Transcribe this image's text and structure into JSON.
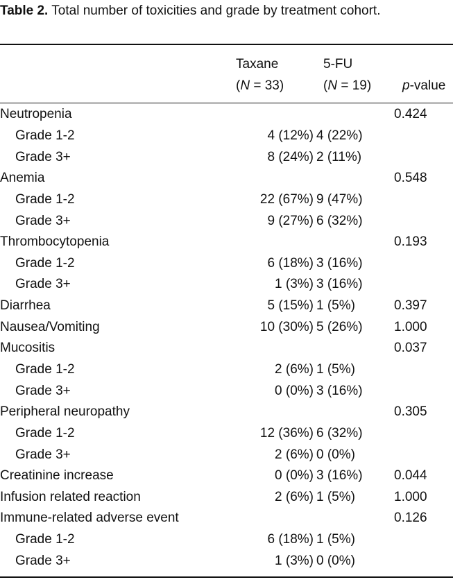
{
  "caption": {
    "label": "Table 2.",
    "text": "Total number of toxicities and grade by treatment cohort."
  },
  "columns": {
    "taxane": {
      "name": "Taxane",
      "n_open": "(",
      "n_var": "N",
      "n_rest": " = 33)"
    },
    "fu": {
      "name": "5-FU",
      "n_open": "(",
      "n_var": "N",
      "n_rest": " = 19)"
    },
    "pvalue": {
      "p": "p",
      "rest": "-value"
    }
  },
  "rows": [
    {
      "label": "Neutropenia",
      "sub": false,
      "taxane": "",
      "fu": "",
      "p": "0.424"
    },
    {
      "label": "Grade 1-2",
      "sub": true,
      "taxane": "4 (12%)",
      "fu": "4 (22%)",
      "p": ""
    },
    {
      "label": "Grade 3+",
      "sub": true,
      "taxane": "8 (24%)",
      "fu": "2 (11%)",
      "p": ""
    },
    {
      "label": "Anemia",
      "sub": false,
      "taxane": "",
      "fu": "",
      "p": "0.548"
    },
    {
      "label": "Grade 1-2",
      "sub": true,
      "taxane": "22 (67%)",
      "fu": "9 (47%)",
      "p": ""
    },
    {
      "label": "Grade 3+",
      "sub": true,
      "taxane": "9 (27%)",
      "fu": "6 (32%)",
      "p": ""
    },
    {
      "label": "Thrombocytopenia",
      "sub": false,
      "taxane": "",
      "fu": "",
      "p": "0.193"
    },
    {
      "label": "Grade 1-2",
      "sub": true,
      "taxane": "6 (18%)",
      "fu": "3 (16%)",
      "p": ""
    },
    {
      "label": "Grade 3+",
      "sub": true,
      "taxane": "1 (3%)",
      "fu": "3 (16%)",
      "p": ""
    },
    {
      "label": "Diarrhea",
      "sub": false,
      "taxane": "5 (15%)",
      "fu": "1 (5%)",
      "p": "0.397"
    },
    {
      "label": "Nausea/Vomiting",
      "sub": false,
      "taxane": "10 (30%)",
      "fu": "5 (26%)",
      "p": "1.000"
    },
    {
      "label": "Mucositis",
      "sub": false,
      "taxane": "",
      "fu": "",
      "p": "0.037"
    },
    {
      "label": "Grade 1-2",
      "sub": true,
      "taxane": "2 (6%)",
      "fu": "1 (5%)",
      "p": ""
    },
    {
      "label": "Grade 3+",
      "sub": true,
      "taxane": "0 (0%)",
      "fu": "3 (16%)",
      "p": ""
    },
    {
      "label": "Peripheral neuropathy",
      "sub": false,
      "taxane": "",
      "fu": "",
      "p": "0.305"
    },
    {
      "label": "Grade 1-2",
      "sub": true,
      "taxane": "12 (36%)",
      "fu": "6 (32%)",
      "p": ""
    },
    {
      "label": "Grade 3+",
      "sub": true,
      "taxane": "2 (6%)",
      "fu": "0 (0%)",
      "p": ""
    },
    {
      "label": "Creatinine increase",
      "sub": false,
      "taxane": "0 (0%)",
      "fu": "3 (16%)",
      "p": "0.044"
    },
    {
      "label": "Infusion related reaction",
      "sub": false,
      "taxane": "2 (6%)",
      "fu": "1 (5%)",
      "p": "1.000"
    },
    {
      "label": "Immune-related adverse event",
      "sub": false,
      "taxane": "",
      "fu": "",
      "p": "0.126"
    },
    {
      "label": "Grade 1-2",
      "sub": true,
      "taxane": "6 (18%)",
      "fu": "1 (5%)",
      "p": ""
    },
    {
      "label": "Grade 3+",
      "sub": true,
      "taxane": "1 (3%)",
      "fu": "0 (0%)",
      "p": ""
    }
  ]
}
